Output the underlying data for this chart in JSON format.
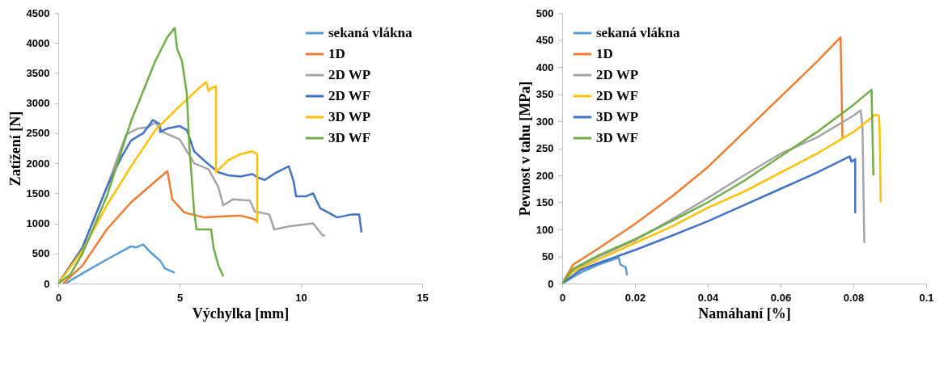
{
  "chart_data": [
    {
      "type": "line",
      "xlabel": "Výchylka [mm]",
      "ylabel": "Zatížení [N]",
      "xlim": [
        0,
        15
      ],
      "xticks": [
        0,
        5,
        10,
        15
      ],
      "ylim": [
        0,
        4500
      ],
      "yticks": [
        0,
        500,
        1000,
        1500,
        2000,
        2500,
        3000,
        3500,
        4000,
        4500
      ],
      "grid": false,
      "legend": "top right",
      "marker": "none",
      "line_style": "solid",
      "series": [
        {
          "name": "sekaná vlákna",
          "color": "#5b9bd5",
          "x": [
            0.3,
            1,
            2,
            3,
            3.2,
            3.5,
            3.8,
            4.2,
            4.4,
            4.8
          ],
          "values": [
            0,
            170,
            400,
            620,
            600,
            650,
            520,
            380,
            250,
            180
          ]
        },
        {
          "name": "1D",
          "color": "#ed7d31",
          "x": [
            0.2,
            1,
            2,
            3,
            4,
            4.5,
            4.7,
            5.2,
            6,
            7,
            7.5,
            8,
            8.2
          ],
          "values": [
            0,
            300,
            900,
            1350,
            1700,
            1870,
            1400,
            1180,
            1100,
            1120,
            1130,
            1080,
            1050
          ]
        },
        {
          "name": "2D WP",
          "color": "#a5a5a5",
          "x": [
            0,
            1,
            2,
            2.8,
            3.3,
            3.7,
            4,
            4.3,
            5,
            5.6,
            6.2,
            6.6,
            6.8,
            7.2,
            7.9,
            8.1,
            8.7,
            8.9,
            9.5,
            10.5,
            10.9,
            11
          ],
          "values": [
            0,
            600,
            1600,
            2480,
            2580,
            2600,
            2680,
            2520,
            2400,
            2000,
            1900,
            1600,
            1300,
            1400,
            1380,
            1200,
            1150,
            900,
            950,
            1000,
            800,
            800
          ]
        },
        {
          "name": "2D WF",
          "color": "#4472c4",
          "x": [
            0,
            1,
            2,
            2.6,
            3,
            3.5,
            3.9,
            4.2,
            4.2,
            4.5,
            5,
            5.3,
            5.6,
            6,
            6.6,
            7,
            7.5,
            8,
            8.2,
            8.5,
            9,
            9.5,
            9.7,
            9.8,
            10.2,
            10.5,
            10.8,
            11.5,
            12.1,
            12.4,
            12.5
          ],
          "values": [
            0,
            600,
            1600,
            2100,
            2380,
            2500,
            2720,
            2650,
            2520,
            2580,
            2620,
            2550,
            2200,
            2050,
            1850,
            1800,
            1780,
            1820,
            1770,
            1720,
            1850,
            1950,
            1700,
            1450,
            1450,
            1500,
            1250,
            1100,
            1150,
            1150,
            850
          ]
        },
        {
          "name": "3D WP",
          "color": "#ffc000",
          "x": [
            0,
            1,
            2,
            3,
            4,
            5,
            5.8,
            6.1,
            6.2,
            6.3,
            6.5,
            6.5,
            7,
            7.5,
            8,
            8.2,
            8.2
          ],
          "values": [
            0,
            550,
            1300,
            1950,
            2550,
            2950,
            3250,
            3350,
            3200,
            3250,
            3280,
            1850,
            2050,
            2150,
            2200,
            2150,
            1000
          ]
        },
        {
          "name": "3D WF",
          "color": "#70ad47",
          "x": [
            0,
            0.5,
            1,
            2,
            3,
            4,
            4.5,
            4.8,
            4.9,
            5.1,
            5.3,
            5.4,
            5.6,
            5.7,
            6.3,
            6.4,
            6.6,
            6.8
          ],
          "values": [
            0,
            150,
            500,
            1450,
            2700,
            3700,
            4100,
            4250,
            3900,
            3700,
            3150,
            2300,
            1200,
            900,
            900,
            600,
            300,
            120
          ]
        }
      ]
    },
    {
      "type": "line",
      "xlabel": "Namáhaní [%]",
      "ylabel": "Pevnost v tahu [MPa]",
      "xlim": [
        0,
        0.1
      ],
      "xticks": [
        0,
        0.02,
        0.04,
        0.06,
        0.08,
        0.1
      ],
      "ylim": [
        0,
        500
      ],
      "yticks": [
        0,
        50,
        100,
        150,
        200,
        250,
        300,
        350,
        400,
        450,
        500
      ],
      "grid": false,
      "legend": "top left",
      "marker": "none",
      "line_style": "solid",
      "series": [
        {
          "name": "sekaná vlákna",
          "color": "#5b9bd5",
          "x": [
            0,
            0.005,
            0.01,
            0.0155,
            0.016,
            0.0175,
            0.0178
          ],
          "values": [
            0,
            20,
            35,
            48,
            35,
            30,
            15
          ]
        },
        {
          "name": "1D",
          "color": "#ed7d31",
          "x": [
            0,
            0.003,
            0.01,
            0.02,
            0.03,
            0.04,
            0.05,
            0.06,
            0.07,
            0.0765,
            0.077
          ],
          "values": [
            0,
            35,
            65,
            110,
            160,
            215,
            280,
            345,
            410,
            455,
            270
          ]
        },
        {
          "name": "2D WP",
          "color": "#a5a5a5",
          "x": [
            0,
            0.003,
            0.01,
            0.02,
            0.03,
            0.04,
            0.05,
            0.06,
            0.07,
            0.08,
            0.082,
            0.0825,
            0.083
          ],
          "values": [
            0,
            25,
            50,
            80,
            118,
            158,
            200,
            240,
            270,
            310,
            320,
            290,
            75
          ]
        },
        {
          "name": "2D WF",
          "color": "#ffc000",
          "x": [
            0,
            0.003,
            0.01,
            0.02,
            0.03,
            0.04,
            0.05,
            0.06,
            0.07,
            0.08,
            0.086,
            0.087,
            0.0872,
            0.0875
          ],
          "values": [
            0,
            22,
            45,
            75,
            105,
            140,
            170,
            205,
            240,
            280,
            312,
            310,
            290,
            150
          ]
        },
        {
          "name": "3D WP",
          "color": "#4472c4",
          "x": [
            0,
            0.005,
            0.01,
            0.02,
            0.03,
            0.04,
            0.05,
            0.06,
            0.07,
            0.079,
            0.0795,
            0.0805,
            0.0805
          ],
          "values": [
            0,
            25,
            38,
            62,
            88,
            115,
            145,
            175,
            205,
            235,
            225,
            230,
            130
          ]
        },
        {
          "name": "3D WF",
          "color": "#70ad47",
          "x": [
            0,
            0.003,
            0.01,
            0.02,
            0.03,
            0.04,
            0.05,
            0.06,
            0.07,
            0.08,
            0.085,
            0.0855
          ],
          "values": [
            0,
            27,
            52,
            82,
            115,
            150,
            190,
            235,
            280,
            330,
            358,
            200
          ]
        }
      ]
    }
  ]
}
